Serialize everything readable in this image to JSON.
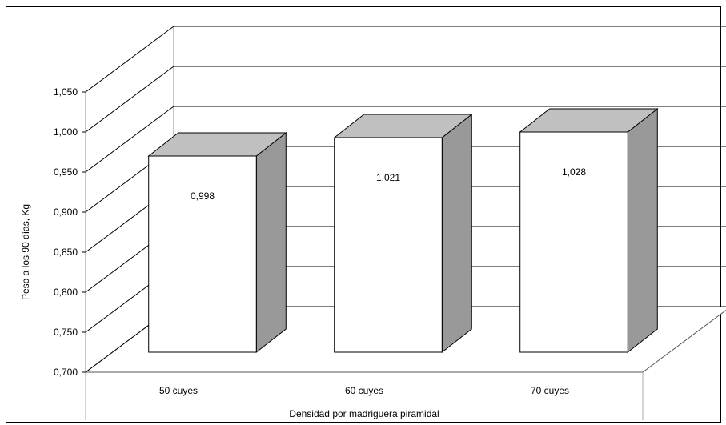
{
  "chart_data": {
    "type": "bar",
    "style": "3d",
    "categories": [
      "50 cuyes",
      "60 cuyes",
      "70 cuyes"
    ],
    "values": [
      0.998,
      1.021,
      1.028
    ],
    "value_labels": [
      "0,998",
      "1,021",
      "1,028"
    ],
    "xlabel": "Densidad por madriguera piramidal",
    "ylabel": "Peso a los 90 días, Kg",
    "ylim": [
      0.7,
      1.05
    ],
    "yticks": [
      0.7,
      0.75,
      0.8,
      0.85,
      0.9,
      0.95,
      1.0,
      1.05
    ],
    "ytick_labels": [
      "0,700",
      "0,750",
      "0,800",
      "0,850",
      "0,900",
      "0,950",
      "1,000",
      "1,050"
    ],
    "grid": true,
    "legend": "none",
    "colors": {
      "bar_front": "#ffffff",
      "bar_top": "#c0c0c0",
      "bar_side": "#999999",
      "grid": "#000000",
      "outline": "#000000"
    }
  }
}
